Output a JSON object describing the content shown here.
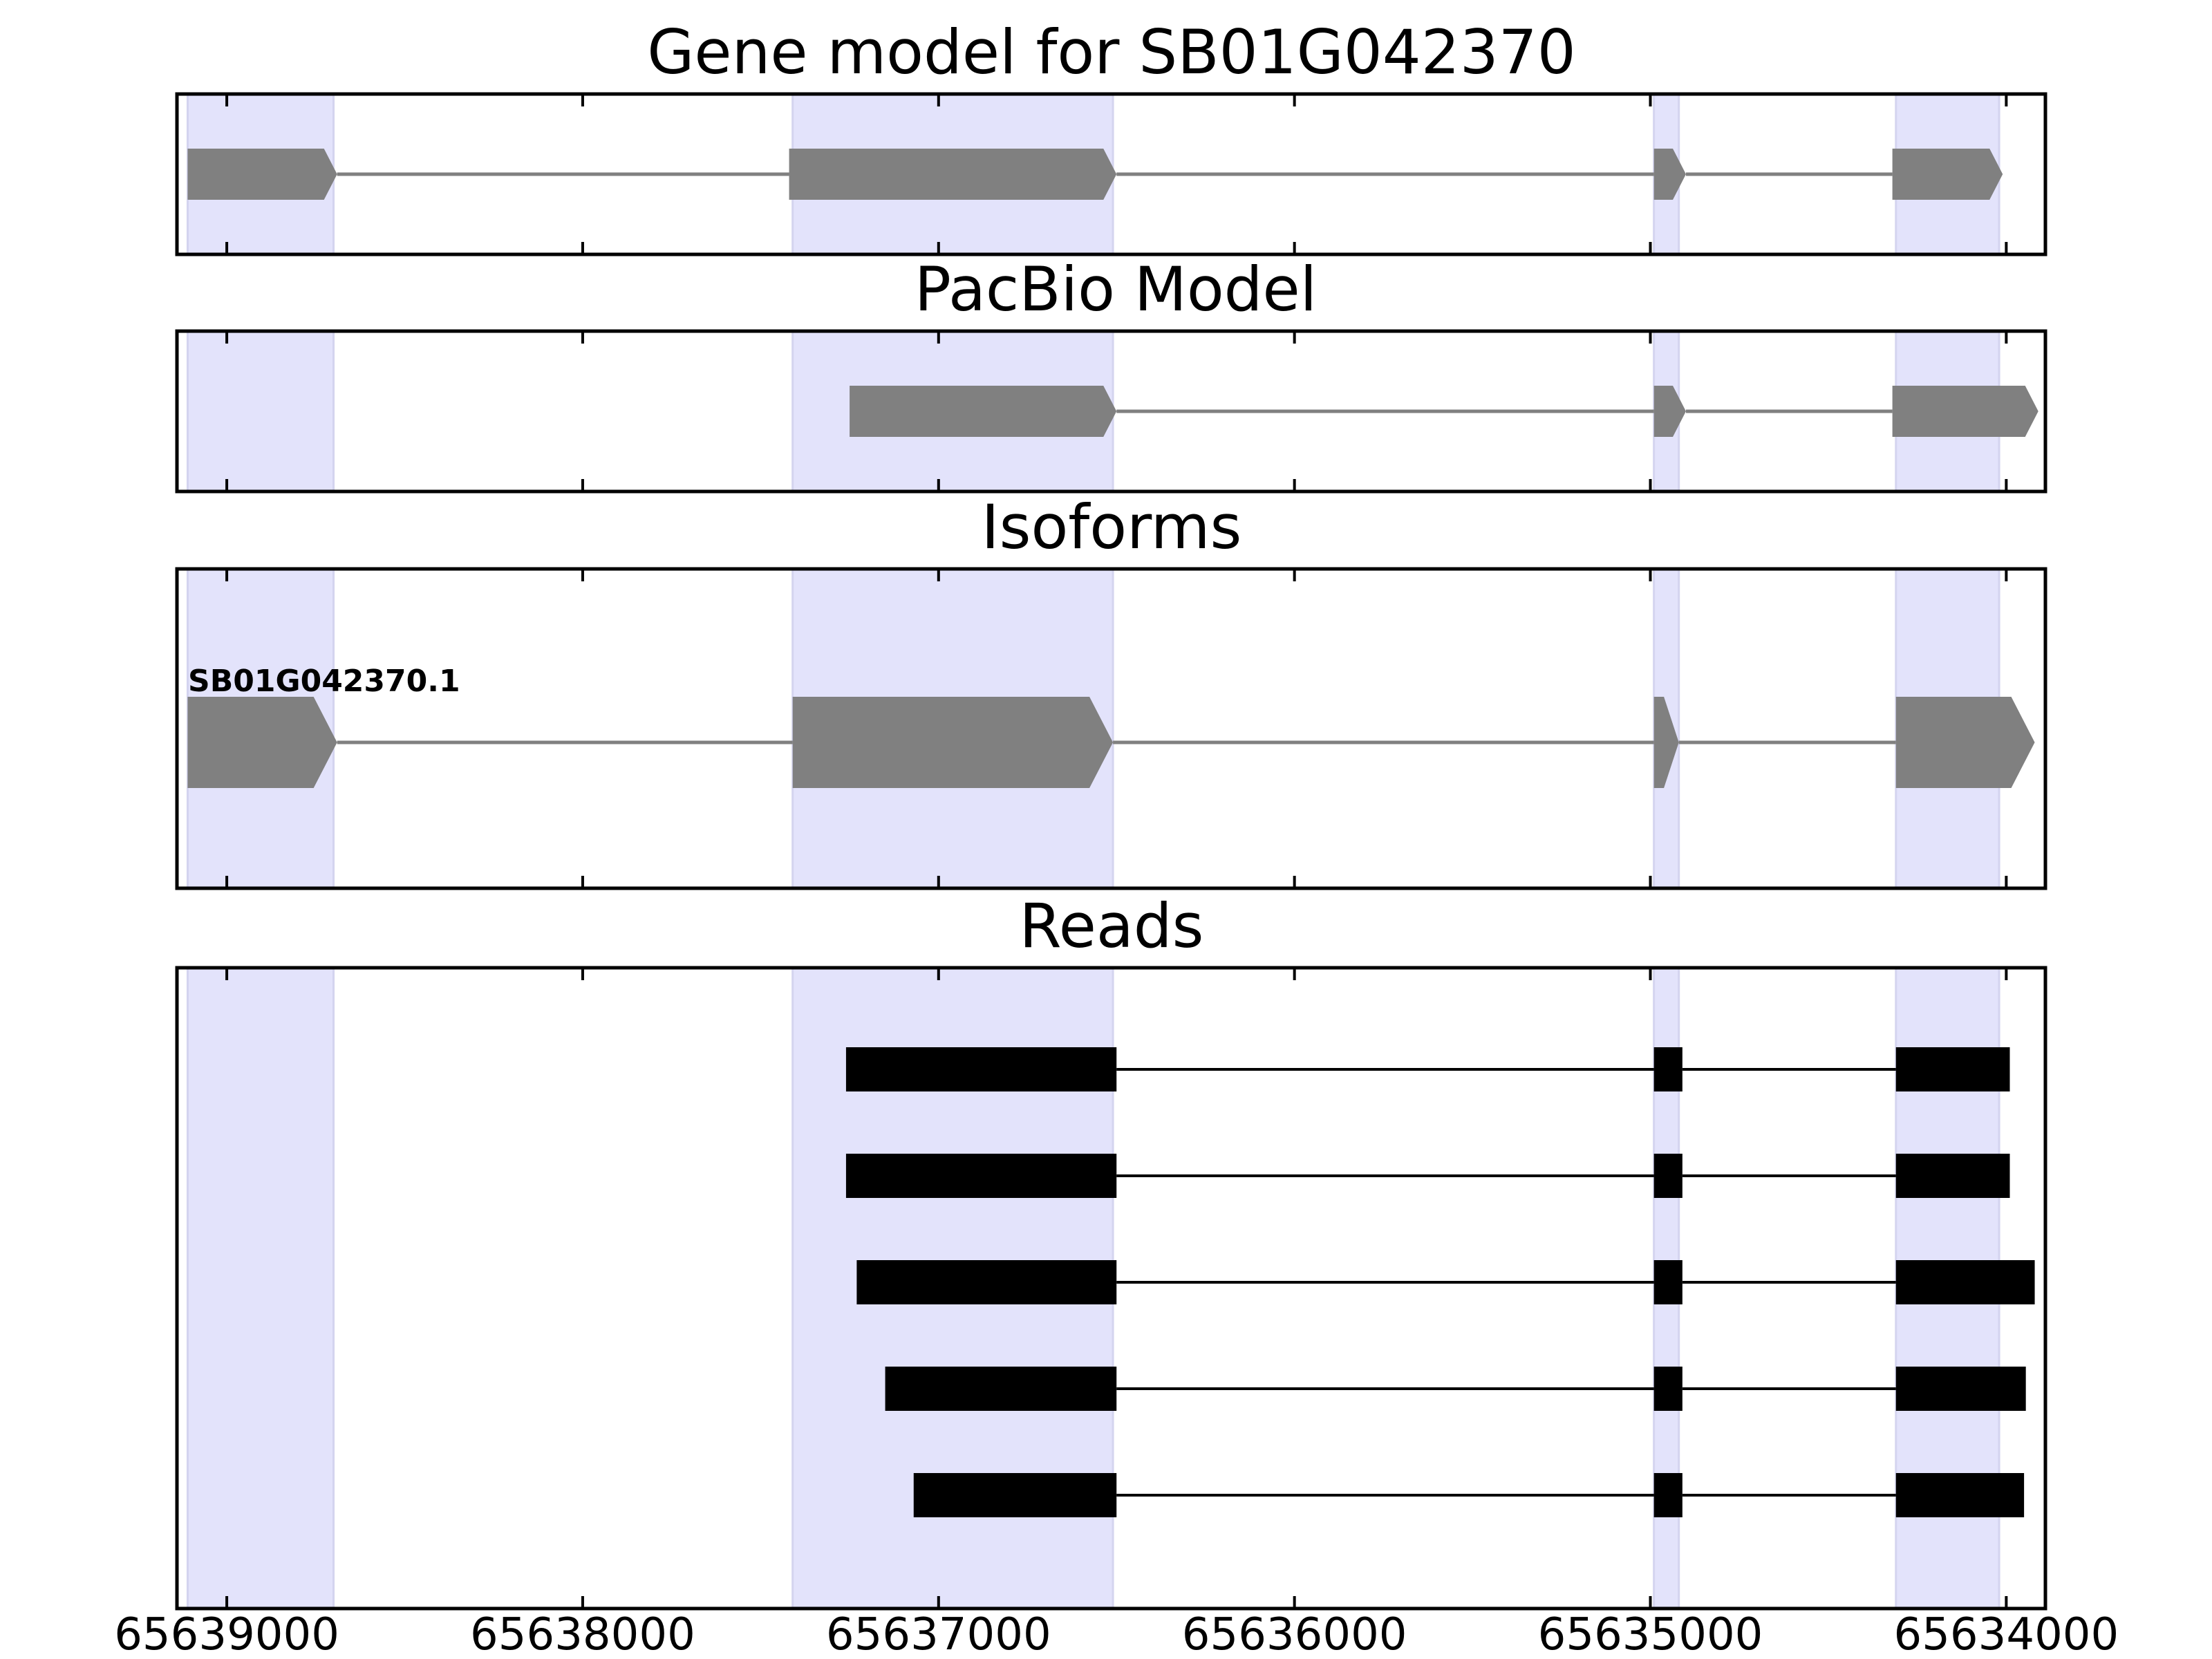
{
  "chart_data": {
    "type": "gene-track",
    "x_axis": {
      "reversed": true,
      "range": [
        65639140,
        65633890
      ],
      "ticks": [
        65639000,
        65638000,
        65637000,
        65636000,
        65635000,
        65634000
      ],
      "tick_labels": [
        "65639000",
        "65638000",
        "65637000",
        "65636000",
        "65635000",
        "65634000"
      ]
    },
    "highlight_regions": [
      [
        65639110,
        65638700
      ],
      [
        65637410,
        65636510
      ],
      [
        65634990,
        65634920
      ],
      [
        65634310,
        65634020
      ]
    ],
    "highlight_color": "#e3e3fb",
    "feature_color": "#808080",
    "read_color": "#000000",
    "panels": [
      {
        "id": "gene-model",
        "title": "Gene model for SB01G042370",
        "tracks": [
          {
            "label": "",
            "exons": [
              [
                65639110,
                65638690
              ],
              [
                65637420,
                65636500
              ],
              [
                65634990,
                65634900
              ],
              [
                65634320,
                65634010
              ]
            ]
          }
        ]
      },
      {
        "id": "pacbio-model",
        "title": "PacBio Model",
        "tracks": [
          {
            "label": "",
            "exons": [
              [
                65637250,
                65636500
              ],
              [
                65634990,
                65634900
              ],
              [
                65634320,
                65633910
              ]
            ]
          }
        ]
      },
      {
        "id": "isoforms",
        "title": "Isoforms",
        "tracks": [
          {
            "label": "SB01G042370.1",
            "exons": [
              [
                65639110,
                65638690
              ],
              [
                65637410,
                65636510
              ],
              [
                65634990,
                65634920
              ],
              [
                65634310,
                65633920
              ]
            ]
          }
        ]
      },
      {
        "id": "reads",
        "title": "Reads",
        "tracks": [
          {
            "label": "",
            "exons": [
              [
                65637260,
                65636500
              ],
              [
                65634990,
                65634910
              ],
              [
                65634310,
                65633990
              ]
            ]
          },
          {
            "label": "",
            "exons": [
              [
                65637260,
                65636500
              ],
              [
                65634990,
                65634910
              ],
              [
                65634310,
                65633990
              ]
            ]
          },
          {
            "label": "",
            "exons": [
              [
                65637230,
                65636500
              ],
              [
                65634990,
                65634910
              ],
              [
                65634310,
                65633920
              ]
            ]
          },
          {
            "label": "",
            "exons": [
              [
                65637150,
                65636500
              ],
              [
                65634990,
                65634910
              ],
              [
                65634310,
                65633945
              ]
            ]
          },
          {
            "label": "",
            "exons": [
              [
                65637070,
                65636500
              ],
              [
                65634990,
                65634910
              ],
              [
                65634310,
                65633950
              ]
            ]
          }
        ]
      }
    ]
  }
}
